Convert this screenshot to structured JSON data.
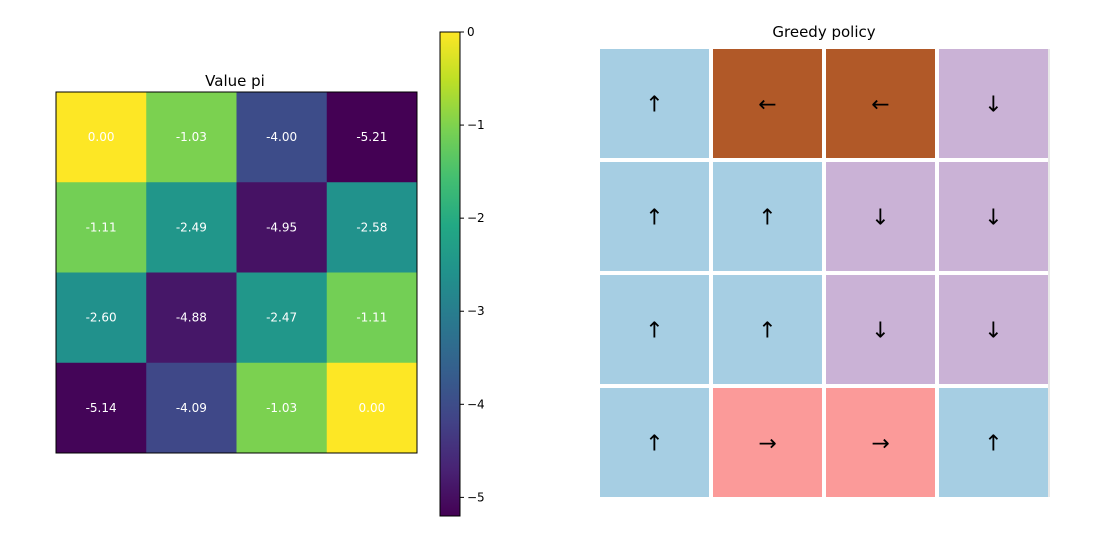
{
  "figure_type": "matplotlib-figure",
  "chart_data": [
    {
      "type": "heatmap",
      "title": "Value pi",
      "colormap": "viridis",
      "colorbar": {
        "vmin": -5.2,
        "vmax": 0,
        "ticks": [
          0,
          -1,
          -2,
          -3,
          -4,
          -5
        ],
        "tick_labels": [
          "0",
          "−1",
          "−2",
          "−3",
          "−4",
          "−5"
        ]
      },
      "rows": 4,
      "cols": 4,
      "values": [
        [
          0.0,
          -1.03,
          -4.0,
          -5.21
        ],
        [
          -1.11,
          -2.49,
          -4.95,
          -2.58
        ],
        [
          -2.6,
          -4.88,
          -2.47,
          -1.11
        ],
        [
          -5.14,
          -4.09,
          -1.03,
          0.0
        ]
      ],
      "cell_labels": [
        [
          "0.00",
          "-1.03",
          "-4.00",
          "-5.21"
        ],
        [
          "-1.11",
          "-2.49",
          "-4.95",
          "-2.58"
        ],
        [
          "-2.60",
          "-4.88",
          "-2.47",
          "-1.11"
        ],
        [
          "-5.14",
          "-4.09",
          "-1.03",
          "0.00"
        ]
      ],
      "label_color": "#ffffff"
    },
    {
      "type": "table",
      "title": "Greedy policy",
      "rows": 4,
      "cols": 4,
      "arrows": [
        [
          "up",
          "left",
          "left",
          "down"
        ],
        [
          "up",
          "up",
          "down",
          "down"
        ],
        [
          "up",
          "up",
          "down",
          "down"
        ],
        [
          "up",
          "right",
          "right",
          "up"
        ]
      ],
      "arrow_glyphs": {
        "up": "↑",
        "down": "↓",
        "left": "←",
        "right": "→"
      },
      "colors": {
        "up": "#a6cee3",
        "left": "#b15928",
        "down": "#cab2d6",
        "right": "#fb9a99"
      }
    }
  ]
}
